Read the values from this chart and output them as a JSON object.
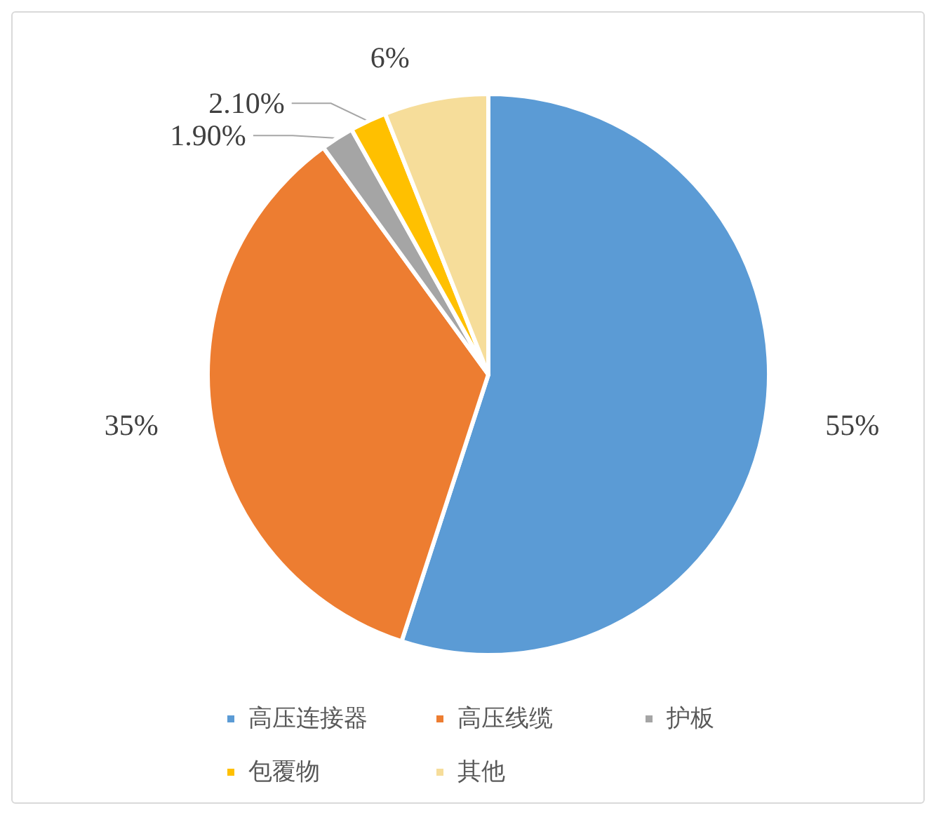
{
  "chart_data": {
    "type": "pie",
    "categories": [
      "高压连接器",
      "高压线缆",
      "护板",
      "包覆物",
      "其他"
    ],
    "values": [
      55,
      35,
      1.9,
      2.1,
      6
    ],
    "colors": [
      "#5b9bd5",
      "#ed7d31",
      "#a5a5a5",
      "#ffc000",
      "#f6dd9a"
    ],
    "value_labels": [
      "55%",
      "35%",
      "1.90%",
      "2.10%",
      "6%"
    ],
    "legend": "bottom"
  }
}
